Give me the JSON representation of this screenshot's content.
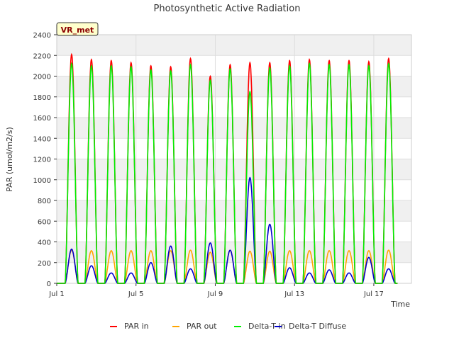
{
  "chart_data": {
    "type": "line",
    "title": "Photosynthetic Active Radiation",
    "xlabel": "Time",
    "ylabel": "PAR (umol/m2/s)",
    "site_label": "VR_met",
    "xlim": [
      1.0,
      18.9
    ],
    "ylim": [
      0,
      2400
    ],
    "yticks": [
      0,
      200,
      400,
      600,
      800,
      1000,
      1200,
      1400,
      1600,
      1800,
      2000,
      2200,
      2400
    ],
    "xticks": [
      {
        "value": 1,
        "label": "Jul 1"
      },
      {
        "value": 5,
        "label": "Jul 5"
      },
      {
        "value": 9,
        "label": "Jul 9"
      },
      {
        "value": 13,
        "label": "Jul 13"
      },
      {
        "value": 17,
        "label": "Jul 17"
      }
    ],
    "days": [
      1.75,
      2.75,
      3.75,
      4.75,
      5.75,
      6.75,
      7.75,
      8.75,
      9.75,
      10.75,
      11.75,
      12.75,
      13.75,
      14.75,
      15.75,
      16.75,
      17.75
    ],
    "series": [
      {
        "name": "PAR in",
        "color": "#ff0000",
        "daily_peak": [
          2210,
          2160,
          2150,
          2130,
          2100,
          2090,
          2170,
          2000,
          2110,
          2130,
          2130,
          2150,
          2160,
          2150,
          2150,
          2140,
          2170
        ]
      },
      {
        "name": "PAR out",
        "color": "#ffa500",
        "daily_peak": [
          320,
          315,
          315,
          315,
          315,
          315,
          320,
          300,
          320,
          310,
          310,
          315,
          315,
          315,
          315,
          315,
          320
        ]
      },
      {
        "name": "Delta-T in",
        "color": "#00ee00",
        "daily_peak": [
          2120,
          2100,
          2100,
          2090,
          2060,
          2050,
          2110,
          1960,
          2070,
          1850,
          2080,
          2100,
          2120,
          2110,
          2110,
          2100,
          2120
        ]
      },
      {
        "name": "Delta-T Diffuse",
        "color": "#0000cc",
        "daily_peak": [
          330,
          170,
          100,
          100,
          200,
          360,
          140,
          390,
          320,
          1020,
          570,
          150,
          100,
          130,
          100,
          250,
          140
        ]
      }
    ]
  }
}
